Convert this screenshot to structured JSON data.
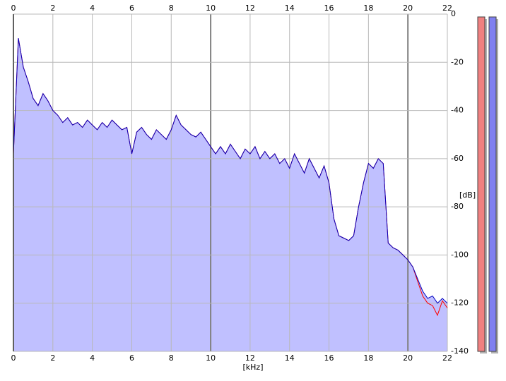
{
  "chart_data": {
    "type": "area",
    "x_label": "[kHz]",
    "y_label": "[dB]",
    "xlim": [
      0,
      22
    ],
    "ylim": [
      -140,
      0
    ],
    "xticks": [
      0,
      2,
      4,
      6,
      8,
      10,
      12,
      14,
      16,
      18,
      20,
      22
    ],
    "yticks": [
      0,
      -20,
      -40,
      -60,
      -80,
      -100,
      -120,
      -140
    ],
    "grid": true,
    "fill_color": "#c0c0ff",
    "x": [
      0,
      0.25,
      0.5,
      0.75,
      1,
      1.25,
      1.5,
      1.75,
      2,
      2.25,
      2.5,
      2.75,
      3,
      3.25,
      3.5,
      3.75,
      4,
      4.25,
      4.5,
      4.75,
      5,
      5.25,
      5.5,
      5.75,
      6,
      6.25,
      6.5,
      6.75,
      7,
      7.25,
      7.5,
      7.75,
      8,
      8.25,
      8.5,
      8.75,
      9,
      9.25,
      9.5,
      9.75,
      10,
      10.25,
      10.5,
      10.75,
      11,
      11.25,
      11.5,
      11.75,
      12,
      12.25,
      12.5,
      12.75,
      13,
      13.25,
      13.5,
      13.75,
      14,
      14.25,
      14.5,
      14.75,
      15,
      15.25,
      15.5,
      15.75,
      16,
      16.25,
      16.5,
      16.75,
      17,
      17.25,
      17.5,
      17.75,
      18,
      18.25,
      18.5,
      18.75,
      19,
      19.25,
      19.5,
      19.75,
      20,
      20.25,
      20.5,
      20.75,
      21,
      21.25,
      21.5,
      21.75,
      22
    ],
    "series": [
      {
        "color": "#ff0000",
        "values": [
          -58,
          -10,
          -22,
          -28,
          -35,
          -38,
          -33,
          -36,
          -40,
          -42,
          -45,
          -43,
          -46,
          -45,
          -47,
          -44,
          -46,
          -48,
          -45,
          -47,
          -44,
          -46,
          -48,
          -47,
          -58,
          -49,
          -47,
          -50,
          -52,
          -48,
          -50,
          -52,
          -48,
          -42,
          -46,
          -48,
          -50,
          -51,
          -49,
          -52,
          -55,
          -58,
          -55,
          -58,
          -54,
          -57,
          -60,
          -56,
          -58,
          -55,
          -60,
          -57,
          -60,
          -58,
          -62,
          -60,
          -64,
          -58,
          -62,
          -66,
          -60,
          -64,
          -68,
          -63,
          -70,
          -85,
          -92,
          -93,
          -94,
          -92,
          -80,
          -70,
          -62,
          -64,
          -60,
          -62,
          -95,
          -97,
          -98,
          -100,
          -102,
          -105,
          -111,
          -117,
          -120,
          -121,
          -125,
          -119,
          -122
        ]
      },
      {
        "color": "#0000c0",
        "values": [
          -58,
          -10,
          -22,
          -28,
          -35,
          -38,
          -33,
          -36,
          -40,
          -42,
          -45,
          -43,
          -46,
          -45,
          -47,
          -44,
          -46,
          -48,
          -45,
          -47,
          -44,
          -46,
          -48,
          -47,
          -58,
          -49,
          -47,
          -50,
          -52,
          -48,
          -50,
          -52,
          -48,
          -42,
          -46,
          -48,
          -50,
          -51,
          -49,
          -52,
          -55,
          -58,
          -55,
          -58,
          -54,
          -57,
          -60,
          -56,
          -58,
          -55,
          -60,
          -57,
          -60,
          -58,
          -62,
          -60,
          -64,
          -58,
          -62,
          -66,
          -60,
          -64,
          -68,
          -63,
          -70,
          -85,
          -92,
          -93,
          -94,
          -92,
          -80,
          -70,
          -62,
          -64,
          -60,
          -62,
          -95,
          -97,
          -98,
          -100,
          -102,
          -105,
          -110,
          -115,
          -118,
          -117,
          -120,
          -118,
          -120
        ]
      }
    ]
  }
}
